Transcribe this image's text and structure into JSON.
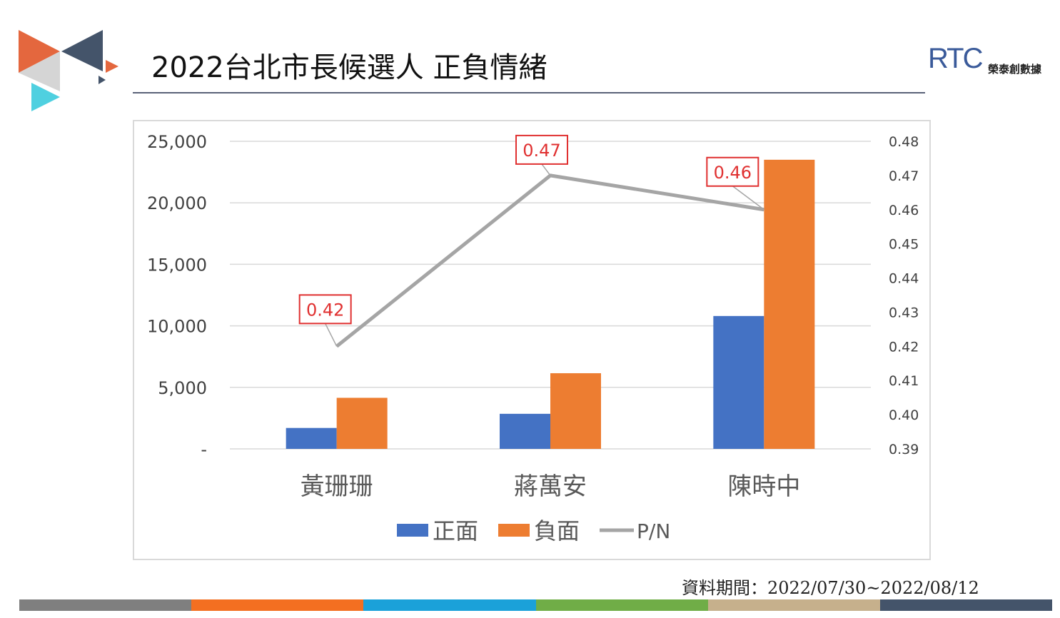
{
  "header": {
    "title": "2022台北市長候選人 正負情緒",
    "brand_mark": "RTC",
    "brand_name": "榮泰創數據"
  },
  "footer": {
    "period_label": "資料期間：2022/07/30~2022/08/12",
    "bar_colors": [
      "#7f7f7f",
      "#f36f21",
      "#1ba1d9",
      "#70ad47",
      "#c6b08c",
      "#44546a"
    ]
  },
  "colors": {
    "positive": "#4472c4",
    "negative": "#ed7d31",
    "ratio_line": "#a5a5a5",
    "label_border": "#e03030",
    "label_text": "#e03030"
  },
  "chart_data": {
    "type": "bar",
    "categories": [
      "黃珊珊",
      "蔣萬安",
      "陳時中"
    ],
    "series": [
      {
        "name": "正面",
        "type": "bar",
        "axis": "left",
        "values": [
          1700,
          2850,
          10800
        ]
      },
      {
        "name": "負面",
        "type": "bar",
        "axis": "right_of_pair",
        "values": [
          4150,
          6150,
          23500
        ]
      },
      {
        "name": "P/N",
        "type": "line",
        "axis": "secondary",
        "values": [
          0.42,
          0.47,
          0.46
        ]
      }
    ],
    "data_labels": [
      "0.42",
      "0.47",
      "0.46"
    ],
    "y_axis": {
      "min": 0,
      "max": 25000,
      "ticks": [
        "-",
        "5,000",
        "10,000",
        "15,000",
        "20,000",
        "25,000"
      ]
    },
    "y2_axis": {
      "min": 0.39,
      "max": 0.48,
      "ticks": [
        "0.39",
        "0.40",
        "0.41",
        "0.42",
        "0.43",
        "0.44",
        "0.45",
        "0.46",
        "0.47",
        "0.48"
      ]
    },
    "legend_position": "bottom",
    "grid": true
  }
}
